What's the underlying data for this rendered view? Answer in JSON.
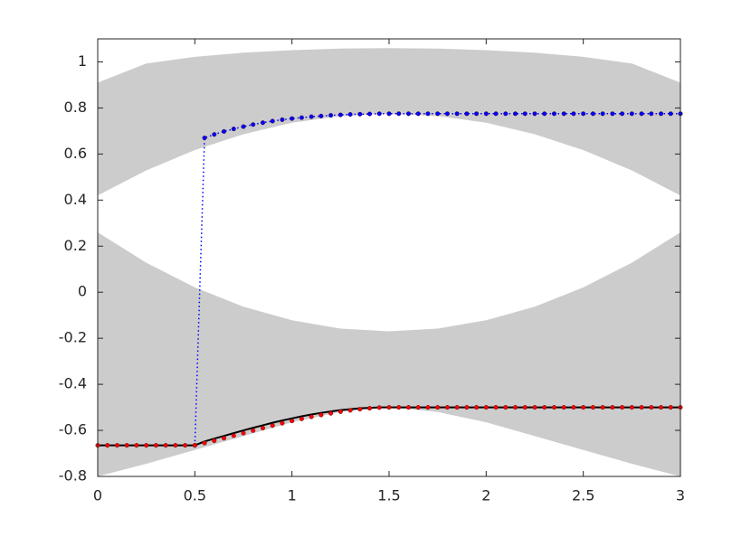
{
  "chart_data": {
    "type": "line",
    "xlim": [
      0,
      3
    ],
    "ylim": [
      -0.8,
      1.1
    ],
    "xticks": [
      0,
      0.5,
      1,
      1.5,
      2,
      2.5,
      3
    ],
    "yticks": [
      -0.8,
      -0.6,
      -0.4,
      -0.2,
      0,
      0.2,
      0.4,
      0.6,
      0.8,
      1
    ],
    "band_x": [
      0,
      0.25,
      0.5,
      0.75,
      1,
      1.25,
      1.5,
      1.75,
      2,
      2.25,
      2.5,
      2.75,
      3
    ],
    "bands": [
      {
        "color": "#cccccc",
        "lower": [
          0.42,
          0.529,
          0.617,
          0.686,
          0.736,
          0.765,
          0.775,
          0.765,
          0.736,
          0.686,
          0.617,
          0.529,
          0.42
        ],
        "upper": [
          0.91,
          0.993,
          1.022,
          1.04,
          1.051,
          1.058,
          1.06,
          1.058,
          1.051,
          1.04,
          1.022,
          0.993,
          0.91
        ]
      },
      {
        "color": "#cccccc",
        "lower": [
          -0.8,
          -0.745,
          -0.685,
          -0.625,
          -0.565,
          -0.52,
          -0.5,
          -0.52,
          -0.565,
          -0.625,
          -0.685,
          -0.745,
          -0.8
        ],
        "upper": [
          0.26,
          0.128,
          0.021,
          -0.063,
          -0.122,
          -0.158,
          -0.17,
          -0.158,
          -0.122,
          -0.063,
          0.021,
          0.128,
          0.26
        ]
      }
    ],
    "x": [
      0,
      0.05,
      0.1,
      0.15,
      0.2,
      0.25,
      0.3,
      0.35,
      0.4,
      0.45,
      0.5,
      0.55,
      0.6,
      0.65,
      0.7,
      0.75,
      0.8,
      0.85,
      0.9,
      0.95,
      1,
      1.05,
      1.1,
      1.15,
      1.2,
      1.25,
      1.3,
      1.35,
      1.4,
      1.45,
      1.5,
      1.55,
      1.6,
      1.65,
      1.7,
      1.75,
      1.8,
      1.85,
      1.9,
      1.95,
      2,
      2.05,
      2.1,
      2.15,
      2.2,
      2.25,
      2.3,
      2.35,
      2.4,
      2.45,
      2.5,
      2.55,
      2.6,
      2.65,
      2.7,
      2.75,
      2.8,
      2.85,
      2.9,
      2.95,
      3
    ],
    "series": [
      {
        "color": "#0000ff",
        "line": "dotted",
        "marker": true,
        "values": [
          null,
          null,
          null,
          null,
          null,
          null,
          null,
          null,
          null,
          null,
          -0.665,
          0.67,
          0.685,
          0.698,
          0.709,
          0.719,
          0.728,
          0.736,
          0.743,
          0.749,
          0.754,
          0.758,
          0.762,
          0.765,
          0.768,
          0.77,
          0.772,
          0.773,
          0.774,
          0.775,
          0.775,
          0.775,
          0.775,
          0.775,
          0.775,
          0.775,
          0.775,
          0.775,
          0.775,
          0.775,
          0.775,
          0.775,
          0.775,
          0.775,
          0.775,
          0.775,
          0.775,
          0.775,
          0.775,
          0.775,
          0.775,
          0.775,
          0.775,
          0.775,
          0.775,
          0.775,
          0.775,
          0.775,
          0.775,
          0.775,
          0.775
        ]
      },
      {
        "color": "#000000",
        "line": "solid",
        "marker": false,
        "values": [
          -0.665,
          -0.665,
          -0.665,
          -0.665,
          -0.665,
          -0.665,
          -0.665,
          -0.665,
          -0.665,
          -0.665,
          -0.665,
          -0.648,
          -0.636,
          -0.624,
          -0.612,
          -0.6,
          -0.589,
          -0.578,
          -0.567,
          -0.557,
          -0.548,
          -0.539,
          -0.531,
          -0.524,
          -0.518,
          -0.512,
          -0.508,
          -0.504,
          -0.502,
          -0.5,
          -0.5,
          -0.5,
          -0.5,
          -0.5,
          -0.5,
          -0.5,
          -0.5,
          -0.5,
          -0.5,
          -0.5,
          -0.5,
          -0.5,
          -0.5,
          -0.5,
          -0.5,
          -0.5,
          -0.5,
          -0.5,
          -0.5,
          -0.5,
          -0.5,
          -0.5,
          -0.5,
          -0.5,
          -0.5,
          -0.5,
          -0.5,
          -0.5,
          -0.5,
          -0.5,
          -0.5
        ]
      },
      {
        "color": "#ff0000",
        "line": "none",
        "marker": true,
        "values": [
          -0.665,
          -0.665,
          -0.665,
          -0.665,
          -0.665,
          -0.665,
          -0.665,
          -0.665,
          -0.665,
          -0.665,
          -0.665,
          -0.655,
          -0.645,
          -0.634,
          -0.623,
          -0.612,
          -0.601,
          -0.59,
          -0.579,
          -0.569,
          -0.559,
          -0.55,
          -0.541,
          -0.533,
          -0.526,
          -0.519,
          -0.513,
          -0.508,
          -0.504,
          -0.501,
          -0.5,
          -0.5,
          -0.5,
          -0.5,
          -0.5,
          -0.5,
          -0.5,
          -0.5,
          -0.5,
          -0.5,
          -0.5,
          -0.5,
          -0.5,
          -0.5,
          -0.5,
          -0.5,
          -0.5,
          -0.5,
          -0.5,
          -0.5,
          -0.5,
          -0.5,
          -0.5,
          -0.5,
          -0.5,
          -0.5,
          -0.5,
          -0.5,
          -0.5,
          -0.5,
          -0.5
        ]
      }
    ]
  }
}
